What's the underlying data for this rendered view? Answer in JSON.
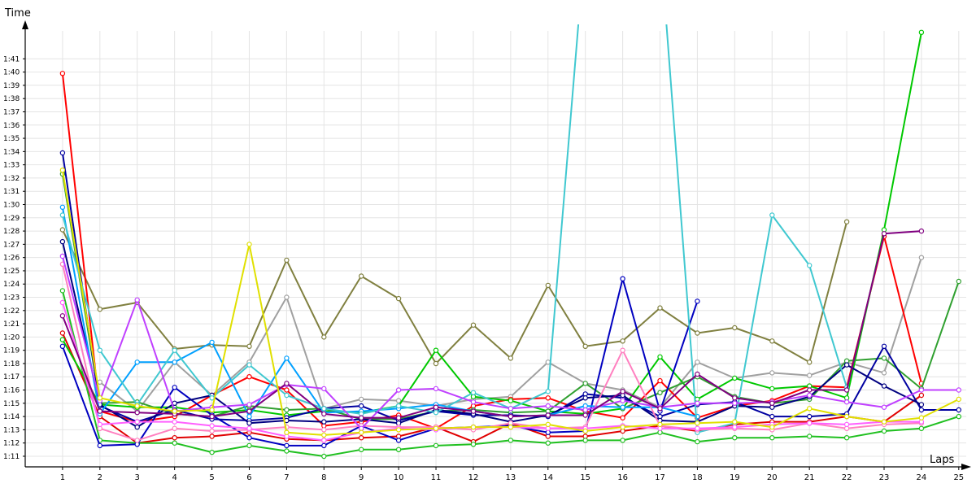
{
  "chart_data": {
    "type": "line",
    "title": "",
    "xlabel": "Laps",
    "ylabel": "Time",
    "x": [
      1,
      2,
      3,
      4,
      5,
      6,
      7,
      8,
      9,
      10,
      11,
      12,
      13,
      14,
      15,
      16,
      17,
      18,
      19,
      20,
      21,
      22,
      23,
      24,
      25
    ],
    "xlim": [
      0,
      25.2
    ],
    "ylim": [
      70.2,
      103.6
    ],
    "y_ticks": [
      71,
      72,
      73,
      74,
      75,
      76,
      77,
      78,
      79,
      80,
      81,
      82,
      83,
      84,
      85,
      86,
      87,
      88,
      89,
      90,
      91,
      92,
      93,
      94,
      95,
      96,
      97,
      98,
      99,
      100,
      101
    ],
    "y_tick_labels": [
      "1:11",
      "1:12",
      "1:13",
      "1:14",
      "1:15",
      "1:16",
      "1:17",
      "1:18",
      "1:19",
      "1:20",
      "1:21",
      "1:22",
      "1:23",
      "1:24",
      "1:25",
      "1:26",
      "1:27",
      "1:28",
      "1:29",
      "1:30",
      "1:31",
      "1:32",
      "1:33",
      "1:34",
      "1:35",
      "1:36",
      "1:37",
      "1:38",
      "1:39",
      "1:40",
      "1:41"
    ],
    "grid": true,
    "legend": "none",
    "series": [
      {
        "color": "#808040",
        "values": [
          88.1,
          82.1,
          82.6,
          79.1,
          79.4,
          79.3,
          85.8,
          80.0,
          84.6,
          82.9,
          78.0,
          80.9,
          78.4,
          83.9,
          79.3,
          79.7,
          82.2,
          80.3,
          80.7,
          79.7,
          78.1,
          88.7,
          null,
          null,
          null
        ]
      },
      {
        "color": "#a0a0a0",
        "values": [
          null,
          76.6,
          74.4,
          78.1,
          75.6,
          78.1,
          83.0,
          74.6,
          75.3,
          75.2,
          74.8,
          75.3,
          75.5,
          78.1,
          76.5,
          76.0,
          74.7,
          78.1,
          76.9,
          77.3,
          77.1,
          78.1,
          77.3,
          86.0,
          null
        ]
      },
      {
        "color": "#ff0000",
        "values": [
          99.9,
          74.4,
          73.6,
          74.0,
          75.6,
          77.0,
          76.0,
          73.3,
          73.6,
          74.1,
          73.1,
          74.8,
          75.3,
          75.4,
          74.4,
          73.9,
          76.7,
          73.9,
          74.8,
          75.2,
          76.3,
          76.2,
          87.6,
          76.5,
          null
        ]
      },
      {
        "color": "#e00000",
        "values": [
          80.3,
          74.0,
          72.0,
          72.4,
          72.5,
          72.8,
          72.3,
          72.2,
          72.4,
          72.5,
          73.2,
          72.1,
          73.5,
          72.5,
          72.5,
          72.9,
          73.3,
          72.9,
          73.4,
          73.6,
          73.6,
          74.0,
          73.6,
          75.6,
          null
        ]
      },
      {
        "color": "#00c800",
        "values": [
          79.8,
          74.9,
          74.7,
          74.7,
          74.3,
          74.5,
          74.1,
          74.4,
          74.3,
          74.8,
          79.0,
          75.5,
          75.2,
          74.4,
          74.2,
          74.6,
          78.5,
          75.3,
          76.9,
          76.1,
          76.3,
          75.4,
          88.1,
          103.0,
          null
        ]
      },
      {
        "color": "#20c020",
        "values": [
          83.5,
          72.2,
          72.0,
          72.0,
          71.3,
          71.8,
          71.4,
          71.0,
          71.5,
          71.5,
          71.8,
          71.9,
          72.2,
          72.0,
          72.2,
          72.2,
          72.8,
          72.1,
          72.4,
          72.4,
          72.5,
          72.4,
          72.9,
          73.1,
          74.0
        ]
      },
      {
        "color": "#30a030",
        "values": [
          92.3,
          75.0,
          75.1,
          74.2,
          74.0,
          74.8,
          74.5,
          74.6,
          73.8,
          73.8,
          74.4,
          74.5,
          74.3,
          74.4,
          76.5,
          74.6,
          75.8,
          77.0,
          75.5,
          75.0,
          75.3,
          78.2,
          78.4,
          76.1,
          84.2
        ]
      },
      {
        "color": "#0000c0",
        "values": [
          79.3,
          71.8,
          71.9,
          76.2,
          74.1,
          72.4,
          71.8,
          71.8,
          73.3,
          72.2,
          73.1,
          73.2,
          73.3,
          72.8,
          72.9,
          84.4,
          74.4,
          82.7,
          null,
          null,
          null,
          null,
          null,
          null,
          null
        ]
      },
      {
        "color": "#0000a0",
        "values": [
          93.9,
          74.8,
          73.6,
          74.5,
          73.8,
          73.7,
          73.9,
          74.6,
          74.8,
          73.7,
          74.4,
          74.1,
          74.1,
          74.0,
          75.7,
          75.4,
          74.0,
          74.9,
          75.1,
          74.0,
          74.0,
          74.2,
          79.3,
          74.5,
          74.5
        ]
      },
      {
        "color": "#000080",
        "values": [
          87.2,
          74.9,
          73.2,
          75.0,
          75.6,
          73.5,
          73.7,
          73.6,
          73.8,
          73.5,
          74.5,
          74.2,
          73.6,
          74.1,
          75.4,
          75.6,
          73.7,
          73.6,
          74.8,
          74.7,
          75.5,
          77.9,
          76.3,
          74.9,
          null
        ]
      },
      {
        "color": "#00a0ff",
        "values": [
          89.8,
          74.2,
          78.1,
          78.1,
          79.6,
          74.0,
          78.4,
          74.3,
          74.4,
          74.6,
          74.9,
          74.4,
          74.0,
          74.1,
          74.8,
          74.7,
          74.7,
          74.0,
          null,
          null,
          null,
          null,
          null,
          null,
          null
        ]
      },
      {
        "color": "#40c8d0",
        "values": [
          89.2,
          79.0,
          74.9,
          79.0,
          75.4,
          77.9,
          75.6,
          74.6,
          74.2,
          74.8,
          74.3,
          75.8,
          74.6,
          75.9,
          110.0,
          null,
          110.0,
          72.8,
          73.5,
          89.2,
          85.4,
          76.2,
          null,
          null,
          null
        ]
      },
      {
        "color": "#ff80c0",
        "values": [
          85.5,
          73.1,
          72.2,
          73.1,
          72.9,
          73.0,
          73.2,
          73.0,
          73.3,
          73.2,
          73.2,
          73.0,
          73.5,
          73.1,
          73.2,
          79.0,
          73.3,
          73.0,
          73.1,
          73.0,
          73.5,
          73.1,
          73.4,
          73.5,
          null
        ]
      },
      {
        "color": "#ff60ff",
        "values": [
          82.6,
          73.4,
          73.6,
          73.6,
          73.3,
          73.1,
          72.5,
          72.2,
          72.8,
          73.1,
          73.0,
          73.2,
          73.2,
          73.1,
          73.1,
          73.3,
          73.1,
          73.1,
          73.2,
          73.4,
          73.5,
          73.4,
          73.6,
          73.6,
          null
        ]
      },
      {
        "color": "#c040ff",
        "values": [
          86.1,
          75.2,
          82.8,
          74.4,
          74.7,
          74.9,
          76.4,
          76.1,
          73.1,
          76.0,
          76.1,
          75.1,
          74.6,
          74.8,
          74.5,
          75.2,
          74.7,
          75.0,
          75.0,
          75.1,
          75.6,
          75.1,
          74.7,
          76.0,
          76.0
        ]
      },
      {
        "color": "#800080",
        "values": [
          81.6,
          74.4,
          74.3,
          74.2,
          74.0,
          74.4,
          76.5,
          74.2,
          73.9,
          73.9,
          74.7,
          74.4,
          74.0,
          74.1,
          74.1,
          75.9,
          74.6,
          77.2,
          75.4,
          75.0,
          76.0,
          76.0,
          87.8,
          88.0,
          null
        ]
      },
      {
        "color": "#e0e000",
        "values": [
          92.6,
          75.4,
          74.8,
          74.4,
          74.5,
          87.0,
          72.8,
          72.6,
          72.8,
          73.0,
          73.1,
          73.2,
          73.2,
          73.4,
          72.9,
          73.2,
          73.4,
          73.5,
          73.6,
          73.2,
          74.6,
          74.0,
          73.6,
          73.9,
          75.3
        ]
      }
    ]
  }
}
